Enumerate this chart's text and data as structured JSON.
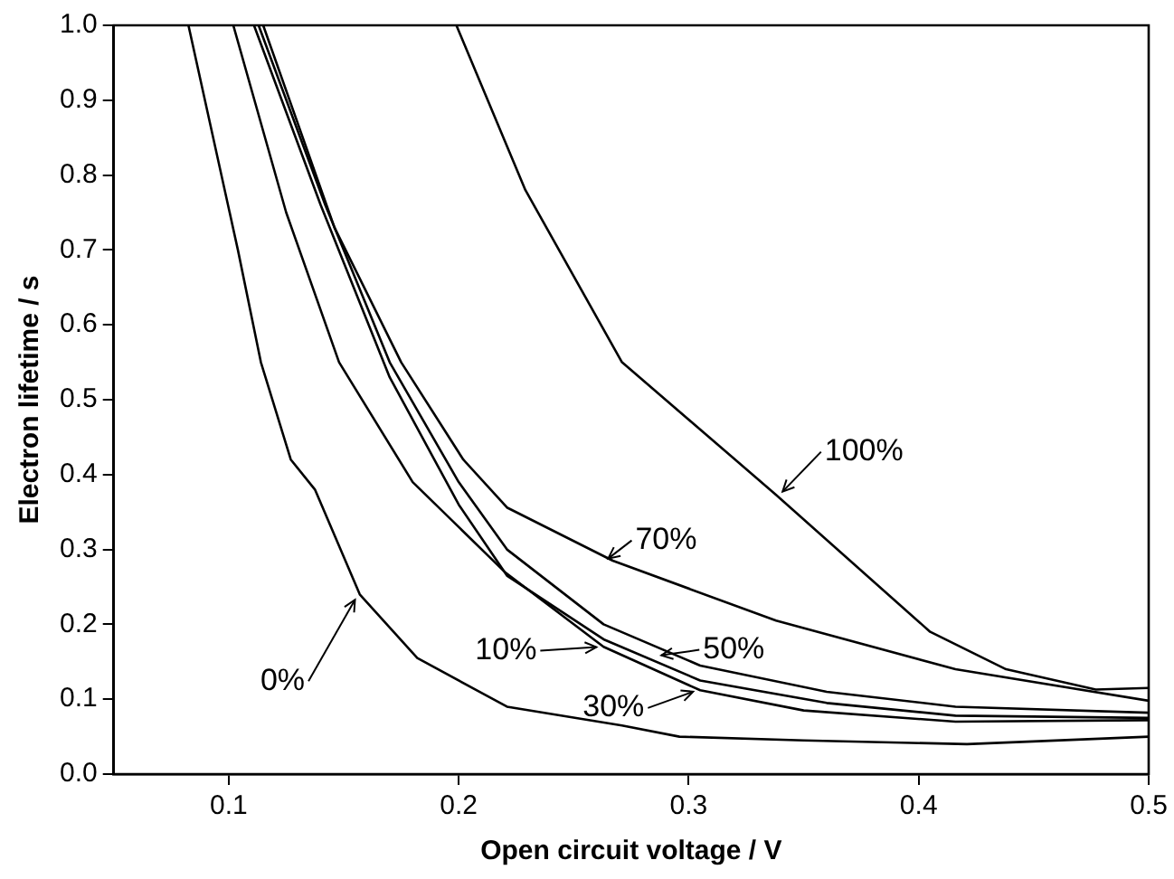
{
  "chart_data": {
    "type": "line",
    "xlabel": "Open circuit voltage / V",
    "ylabel": "Electron lifetime / s",
    "xlim": [
      0.05,
      0.5
    ],
    "xticks": [
      0.1,
      0.2,
      0.3,
      0.4,
      0.5
    ],
    "ylim": [
      0,
      1
    ],
    "yticks": [
      {
        "value": 0,
        "label": "0.0"
      },
      0.1,
      0.2,
      0.3,
      0.4,
      0.5,
      0.6,
      0.7,
      0.8,
      0.9,
      {
        "value": 1,
        "label": "1.0"
      }
    ],
    "grid": false,
    "legend": false,
    "marker": "none",
    "line_style": "solid",
    "series": [
      {
        "color": "#000000",
        "x": [
          0.0825,
          0.104,
          0.114,
          0.127,
          0.1375,
          0.157,
          0.182,
          0.221,
          0.271,
          0.296,
          0.35,
          0.421,
          0.5
        ],
        "values": [
          1.0,
          0.7,
          0.55,
          0.42,
          0.38,
          0.24,
          0.155,
          0.09,
          0.065,
          0.05,
          0.045,
          0.04,
          0.05
        ]
      },
      {
        "color": "#000000",
        "x": [
          0.102,
          0.125,
          0.148,
          0.18,
          0.22,
          0.263,
          0.305,
          0.35,
          0.416,
          0.5
        ],
        "values": [
          1.0,
          0.75,
          0.55,
          0.39,
          0.27,
          0.17,
          0.112,
          0.085,
          0.07,
          0.072
        ]
      },
      {
        "color": "#000000",
        "x": [
          0.111,
          0.14,
          0.17,
          0.2,
          0.221,
          0.263,
          0.305,
          0.36,
          0.416,
          0.5
        ],
        "values": [
          1.0,
          0.76,
          0.53,
          0.36,
          0.265,
          0.18,
          0.125,
          0.095,
          0.078,
          0.075
        ]
      },
      {
        "color": "#000000",
        "x": [
          0.113,
          0.142,
          0.17,
          0.2,
          0.221,
          0.263,
          0.305,
          0.36,
          0.416,
          0.5
        ],
        "values": [
          1.0,
          0.76,
          0.55,
          0.39,
          0.3,
          0.2,
          0.145,
          0.11,
          0.09,
          0.082
        ]
      },
      {
        "color": "#000000",
        "x": [
          0.115,
          0.146,
          0.175,
          0.202,
          0.221,
          0.267,
          0.338,
          0.416,
          0.5
        ],
        "values": [
          1.0,
          0.73,
          0.55,
          0.42,
          0.356,
          0.285,
          0.205,
          0.14,
          0.098
        ]
      },
      {
        "color": "#000000",
        "x": [
          0.199,
          0.229,
          0.271,
          0.338,
          0.405,
          0.438,
          0.477,
          0.5
        ],
        "values": [
          1.0,
          0.78,
          0.55,
          0.373,
          0.19,
          0.14,
          0.113,
          0.115
        ]
      }
    ],
    "annotations": [
      {
        "text": "0%",
        "x": 0.157,
        "y": 0.24
      },
      {
        "text": "10%",
        "x": 0.263,
        "y": 0.17
      },
      {
        "text": "30%",
        "x": 0.305,
        "y": 0.112
      },
      {
        "text": "50%",
        "x": 0.285,
        "y": 0.158
      },
      {
        "text": "70%",
        "x": 0.262,
        "y": 0.285
      },
      {
        "text": "100%",
        "x": 0.338,
        "y": 0.373
      }
    ]
  }
}
